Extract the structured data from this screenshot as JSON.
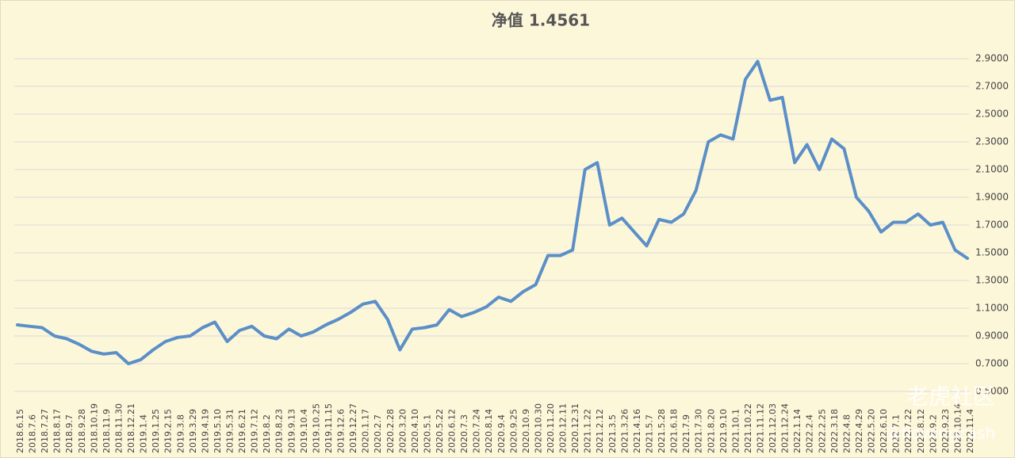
{
  "chart_data": {
    "type": "line",
    "title": "净值 1.4561",
    "categories": [
      "2018.6.15",
      "2018.7.6",
      "2018.7.27",
      "2018.8.17",
      "2018.9.7",
      "2018.9.28",
      "2018.10.19",
      "2018.11.9",
      "2018.11.30",
      "2018.12.21",
      "2019.1.4",
      "2019.1.25",
      "2019.2.15",
      "2019.3.8",
      "2019.3.29",
      "2019.4.19",
      "2019.5.10",
      "2019.5.31",
      "2019.6.21",
      "2019.7.12",
      "2019.8.2",
      "2019.8.23",
      "2019.9.13",
      "2019.10.4",
      "2019.10.25",
      "2019.11.15",
      "2019.12.6",
      "2019.12.27",
      "2020.1.17",
      "2020.2.7",
      "2020.2.28",
      "2020.3.20",
      "2020.4.10",
      "2020.5.1",
      "2020.5.22",
      "2020.6.12",
      "2020.7.3",
      "2020.7.24",
      "2020.8.14",
      "2020.9.4",
      "2020.9.25",
      "2020.10.9",
      "2020.10.30",
      "2020.11.20",
      "2020.12.11",
      "2020.12.31",
      "2021.1.22",
      "2021.2.12",
      "2021.3.5",
      "2021.3.26",
      "2021.4.16",
      "2021.5.7",
      "2021.5.28",
      "2021.6.18",
      "2021.7.9",
      "2021.7.30",
      "2021.8.20",
      "2021.9.10",
      "2021.10.1",
      "2021.10.22",
      "2021.11.12",
      "2021.12.03",
      "2021.12.24",
      "2022.1.14",
      "2022.2.4",
      "2022.2.25",
      "2022.3.18",
      "2022.4.8",
      "2022.4.29",
      "2022.5.20",
      "2022.6.10",
      "2022.7.1",
      "2022.7.22",
      "2022.8.12",
      "2022.9.2",
      "2022.9.23",
      "2022.10.14",
      "2022.11.4"
    ],
    "values": [
      0.98,
      0.97,
      0.96,
      0.9,
      0.88,
      0.84,
      0.79,
      0.77,
      0.78,
      0.7,
      0.73,
      0.8,
      0.86,
      0.89,
      0.9,
      0.96,
      1.0,
      0.86,
      0.94,
      0.97,
      0.9,
      0.88,
      0.95,
      0.9,
      0.93,
      0.98,
      1.02,
      1.07,
      1.13,
      1.15,
      1.02,
      0.8,
      0.95,
      0.96,
      0.98,
      1.09,
      1.04,
      1.07,
      1.11,
      1.18,
      1.15,
      1.22,
      1.27,
      1.48,
      1.48,
      1.52,
      2.1,
      2.15,
      1.7,
      1.75,
      1.65,
      1.55,
      1.74,
      1.72,
      1.78,
      1.95,
      2.3,
      2.35,
      2.32,
      2.75,
      2.88,
      2.6,
      2.62,
      2.15,
      2.28,
      2.1,
      2.32,
      2.25,
      1.9,
      1.8,
      1.65,
      1.72,
      1.72,
      1.78,
      1.7,
      1.72,
      1.52,
      1.46
    ],
    "color": "#5b8fc7",
    "ylim": [
      0.5,
      2.9
    ],
    "yticks": [
      {
        "value": 0.5,
        "label": "0.5000"
      },
      {
        "value": 0.7,
        "label": "0.7000"
      },
      {
        "value": 0.9,
        "label": "0.9000"
      },
      {
        "value": 1.1,
        "label": "1.1000"
      },
      {
        "value": 1.3,
        "label": "1.3000"
      },
      {
        "value": 1.5,
        "label": "1.5000"
      },
      {
        "value": 1.7,
        "label": "1.7000"
      },
      {
        "value": 1.9,
        "label": "1.9000"
      },
      {
        "value": 2.1,
        "label": "2.1000"
      },
      {
        "value": 2.3,
        "label": "2.3000"
      },
      {
        "value": 2.5,
        "label": "2.5000"
      },
      {
        "value": 2.7,
        "label": "2.7000"
      },
      {
        "value": 2.9,
        "label": "2.9000"
      }
    ],
    "grid": true,
    "watermark": "老虎社区",
    "watermark_sub": "@flowingcash"
  }
}
